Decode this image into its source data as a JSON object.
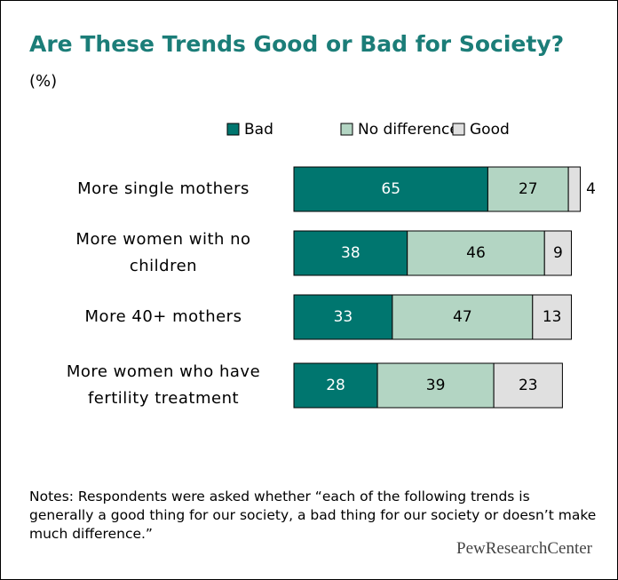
{
  "chart_data": {
    "type": "stacked_bar_horizontal",
    "title": "Are These Trends Good or Bad for Society?",
    "subtitle": "(%)",
    "categories": [
      "More single mothers",
      "More women with no children",
      "More 40+ mothers",
      "More women who have fertility treatment"
    ],
    "series": [
      {
        "name": "Bad",
        "color": "#00766f",
        "label_color": "#ffffff",
        "values": [
          65,
          38,
          33,
          28
        ]
      },
      {
        "name": "No difference",
        "color": "#b3d5c3",
        "label_color": "#000000",
        "values": [
          27,
          46,
          47,
          39
        ]
      },
      {
        "name": "Good",
        "color": "#e0e0e0",
        "label_color": "#000000",
        "values": [
          4,
          9,
          13,
          23
        ]
      }
    ],
    "xlim": [
      0,
      100
    ],
    "notes": "Notes: Respondents were asked whether “each of the following trends is generally a good thing for our society, a bad thing for our society or doesn’t make much difference.”",
    "source": "PewResearchCenter"
  }
}
